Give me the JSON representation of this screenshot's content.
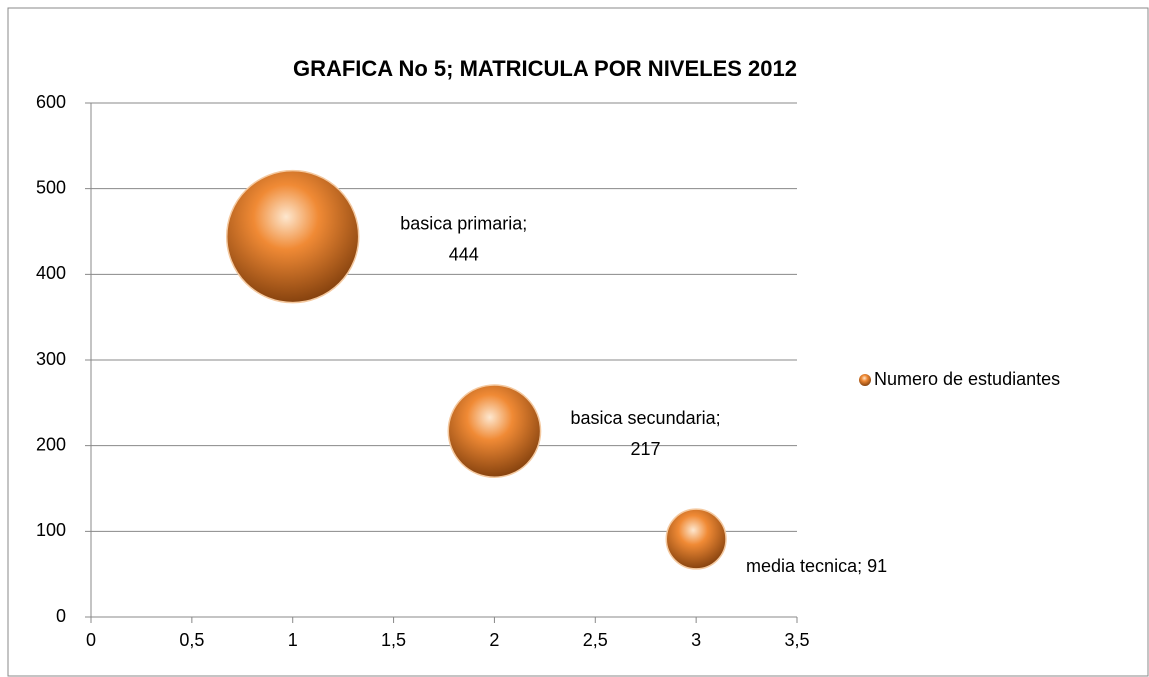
{
  "chart_data": {
    "type": "bubble",
    "title": "GRAFICA No 5; MATRICULA POR NIVELES 2012",
    "series": [
      {
        "name": "Numero de estudiantes",
        "color": "#f08a35",
        "x": [
          1,
          2,
          3
        ],
        "values": [
          444,
          217,
          91
        ],
        "sizes": [
          444,
          217,
          91
        ],
        "value_labels": [
          "basica primaria; 444",
          "basica secundaria; 217",
          "media tecnica; 91"
        ]
      }
    ],
    "xlim": [
      0,
      3.5
    ],
    "xticks": [
      0,
      {
        "value": 0.5,
        "label": "0,5"
      },
      1,
      {
        "value": 1.5,
        "label": "1,5"
      },
      2,
      {
        "value": 2.5,
        "label": "2,5"
      },
      3,
      {
        "value": 3.5,
        "label": "3,5"
      }
    ],
    "ylim": [
      0,
      600
    ],
    "yticks": [
      0,
      100,
      200,
      300,
      400,
      500,
      600
    ],
    "grid": true,
    "legend": "right"
  }
}
